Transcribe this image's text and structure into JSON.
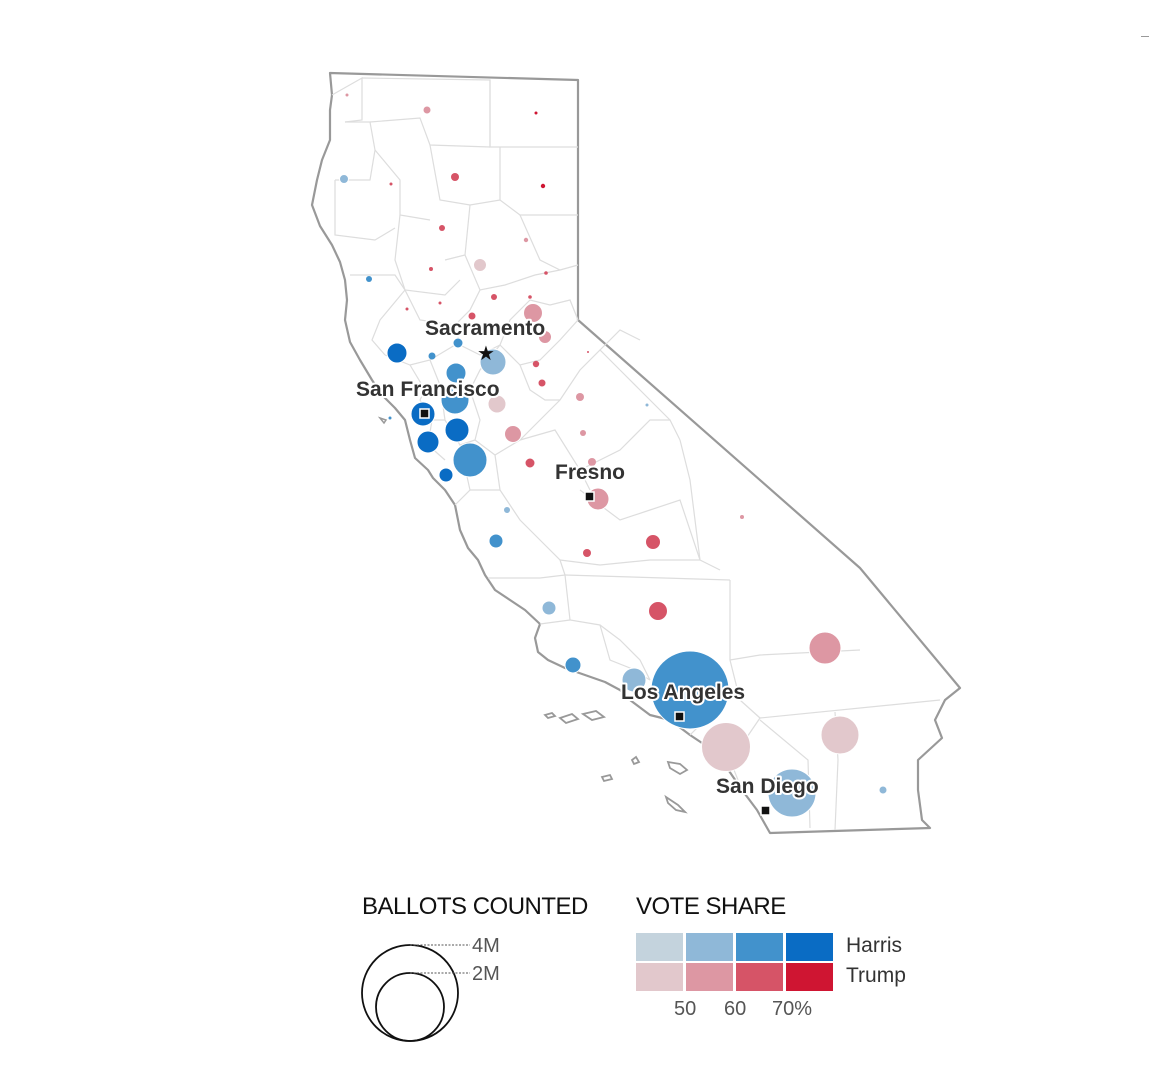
{
  "cities": [
    {
      "name": "Sacramento",
      "marker": "star-icon"
    },
    {
      "name": "San Francisco",
      "marker": "square-icon"
    },
    {
      "name": "Fresno",
      "marker": "square-icon"
    },
    {
      "name": "Los Angeles",
      "marker": "square-icon"
    },
    {
      "name": "San Diego",
      "marker": "square-icon"
    }
  ],
  "legend": {
    "ballots": {
      "title": "BALLOTS COUNTED",
      "large_label": "4M",
      "small_label": "2M"
    },
    "vote_share": {
      "title": "VOTE SHARE",
      "harris_label": "Harris",
      "trump_label": "Trump",
      "ticks": [
        "50",
        "60",
        "70%"
      ],
      "harris_colors": [
        "#c4d3dd",
        "#8fb8d8",
        "#4292cc",
        "#0a6cc4"
      ],
      "trump_colors": [
        "#e2c8cc",
        "#dd97a3",
        "#d65467",
        "#cf1532"
      ]
    }
  },
  "colors": {
    "outline": "#999999",
    "county_lines": "#dddddd",
    "label_text": "#333333"
  }
}
